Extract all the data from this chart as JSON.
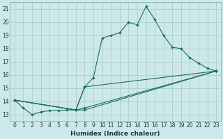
{
  "xlabel": "Humidex (Indice chaleur)",
  "bg_color": "#cce8e8",
  "grid_color": "#aacece",
  "line_color": "#1e6b60",
  "xlim": [
    -0.5,
    23.5
  ],
  "ylim": [
    12.5,
    21.5
  ],
  "xticks": [
    0,
    1,
    2,
    3,
    4,
    5,
    6,
    7,
    8,
    9,
    10,
    11,
    12,
    13,
    14,
    15,
    16,
    17,
    18,
    19,
    20,
    21,
    22,
    23
  ],
  "yticks": [
    13,
    14,
    15,
    16,
    17,
    18,
    19,
    20,
    21
  ],
  "lines": [
    {
      "x": [
        0,
        1,
        2,
        3,
        4,
        5,
        6,
        7,
        8,
        9,
        10,
        11,
        12,
        13,
        14,
        15,
        16,
        17,
        18,
        19,
        20,
        21,
        22,
        23
      ],
      "y": [
        14.1,
        13.5,
        13.0,
        13.2,
        13.3,
        13.3,
        13.35,
        13.35,
        15.1,
        15.8,
        18.8,
        19.0,
        19.2,
        20.0,
        19.8,
        21.2,
        20.2,
        19.0,
        18.1,
        18.0,
        17.3,
        16.9,
        16.5,
        16.3
      ]
    },
    {
      "x": [
        0,
        7,
        8,
        23
      ],
      "y": [
        14.1,
        13.35,
        15.1,
        16.3
      ]
    },
    {
      "x": [
        0,
        7,
        8,
        23
      ],
      "y": [
        14.1,
        13.35,
        13.5,
        16.3
      ]
    },
    {
      "x": [
        0,
        7,
        8,
        23
      ],
      "y": [
        14.1,
        13.35,
        13.35,
        16.3
      ]
    }
  ]
}
